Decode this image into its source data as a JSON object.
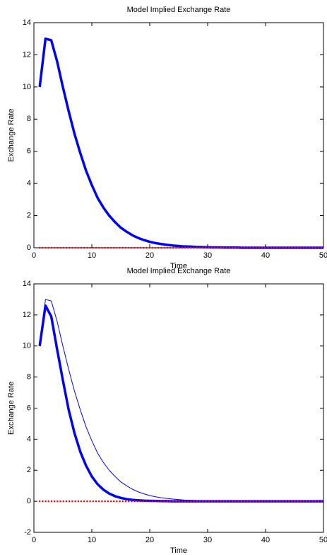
{
  "chart_data": [
    {
      "type": "line",
      "title": "Model Implied Exchange Rate",
      "x_label": "Time",
      "y_label": "Exchange Rate",
      "x": [
        1,
        2,
        3,
        4,
        5,
        6,
        7,
        8,
        9,
        10,
        11,
        12,
        13,
        14,
        15,
        16,
        17,
        18,
        19,
        20,
        21,
        22,
        23,
        24,
        25,
        26,
        27,
        28,
        29,
        30,
        31,
        32,
        33,
        34,
        35,
        36,
        37,
        38,
        39,
        40,
        41,
        42,
        43,
        44,
        45,
        46,
        47,
        48,
        49,
        50
      ],
      "series": [
        {
          "color": "#0000ff",
          "line_width": 3.5,
          "style": "solid",
          "values": [
            10.0,
            13.0,
            12.9,
            11.6,
            10.0,
            8.5,
            7.1,
            5.9,
            4.8,
            3.9,
            3.1,
            2.5,
            2.0,
            1.6,
            1.25,
            1.0,
            0.78,
            0.61,
            0.48,
            0.37,
            0.29,
            0.23,
            0.18,
            0.14,
            0.11,
            0.08,
            0.07,
            0.05,
            0.04,
            0.03,
            0.02,
            0.02,
            0.01,
            0.01,
            0.01,
            0,
            0,
            0,
            0,
            0,
            0,
            0,
            0,
            0,
            0,
            0,
            0,
            0,
            0,
            0
          ]
        },
        {
          "color": "#ff0000",
          "line_width": 2.5,
          "style": "dotted",
          "values": [
            0,
            0,
            0,
            0,
            0,
            0,
            0,
            0,
            0,
            0,
            0,
            0,
            0,
            0,
            0,
            0,
            0,
            0,
            0,
            0,
            0,
            0,
            0,
            0,
            0,
            0,
            0,
            0,
            0,
            0,
            0,
            0,
            0,
            0,
            0,
            0,
            0,
            0,
            0,
            0,
            0,
            0,
            0,
            0,
            0,
            0,
            0,
            0,
            0,
            0
          ]
        }
      ],
      "xlim": [
        0,
        50
      ],
      "ylim": [
        0,
        14
      ],
      "xticks": [
        0,
        10,
        20,
        30,
        40,
        50
      ],
      "yticks": [
        0,
        2,
        4,
        6,
        8,
        10,
        12,
        14
      ]
    },
    {
      "type": "line",
      "title": "Model Implied Exchange Rate",
      "x_label": "Time",
      "y_label": "Exchange Rate",
      "x": [
        1,
        2,
        3,
        4,
        5,
        6,
        7,
        8,
        9,
        10,
        11,
        12,
        13,
        14,
        15,
        16,
        17,
        18,
        19,
        20,
        21,
        22,
        23,
        24,
        25,
        26,
        27,
        28,
        29,
        30,
        31,
        32,
        33,
        34,
        35,
        36,
        37,
        38,
        39,
        40,
        41,
        42,
        43,
        44,
        45,
        46,
        47,
        48,
        49,
        50
      ],
      "series": [
        {
          "color": "#0000ff",
          "line_width": 1,
          "style": "solid",
          "values": [
            10.0,
            13.0,
            12.9,
            11.6,
            10.0,
            8.5,
            7.1,
            5.9,
            4.8,
            3.9,
            3.1,
            2.5,
            2.0,
            1.6,
            1.25,
            1.0,
            0.78,
            0.61,
            0.48,
            0.37,
            0.29,
            0.23,
            0.18,
            0.14,
            0.11,
            0.08,
            0.07,
            0.05,
            0.04,
            0.03,
            0.02,
            0.02,
            0.01,
            0.01,
            0.01,
            0,
            0,
            0,
            0,
            0,
            0,
            0,
            0,
            0,
            0,
            0,
            0,
            0,
            0,
            0
          ]
        },
        {
          "color": "#0000ff",
          "line_width": 3.5,
          "style": "solid",
          "values": [
            10.0,
            12.6,
            11.9,
            9.8,
            7.8,
            5.9,
            4.4,
            3.2,
            2.3,
            1.6,
            1.1,
            0.75,
            0.5,
            0.33,
            0.22,
            0.14,
            0.09,
            0.06,
            0.04,
            0.03,
            0.02,
            0.01,
            0.01,
            0,
            0,
            0,
            0,
            0,
            0,
            0,
            0,
            0,
            0,
            0,
            0,
            0,
            0,
            0,
            0,
            0,
            0,
            0,
            0,
            0,
            0,
            0,
            0,
            0,
            0,
            0
          ]
        },
        {
          "color": "#ff0000",
          "line_width": 2.5,
          "style": "dotted",
          "values": [
            0,
            0,
            0,
            0,
            0,
            0,
            0,
            0,
            0,
            0,
            0,
            0,
            0,
            0,
            0,
            0,
            0,
            0,
            0,
            0,
            0,
            0,
            0,
            0,
            0,
            0,
            0,
            0,
            0,
            0,
            0,
            0,
            0,
            0,
            0,
            0,
            0,
            0,
            0,
            0,
            0,
            0,
            0,
            0,
            0,
            0,
            0,
            0,
            0,
            0
          ]
        }
      ],
      "xlim": [
        0,
        50
      ],
      "ylim": [
        -2,
        14
      ],
      "xticks": [
        0,
        10,
        20,
        30,
        40,
        50
      ],
      "yticks": [
        -2,
        0,
        2,
        4,
        6,
        8,
        10,
        12,
        14
      ]
    }
  ]
}
